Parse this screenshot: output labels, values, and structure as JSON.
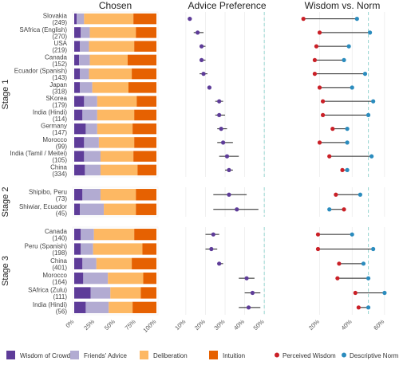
{
  "chart_data": [
    {
      "panel": "chosen",
      "type": "bar",
      "title": "Chosen",
      "stacked": true,
      "x_ticks": [
        "0%",
        "25%",
        "50%",
        "75%",
        "100%"
      ],
      "xlim": [
        0,
        100
      ],
      "series_names": [
        "Wisdom of Crowds",
        "Friends' Advice",
        "Deliberation",
        "Intuition"
      ],
      "series_colors": [
        "#5e3c99",
        "#b2abd2",
        "#fdb863",
        "#e66101"
      ],
      "stages": [
        {
          "name": "Stage 1",
          "rows": [
            {
              "label": "Slovakia",
              "n": "(249)",
              "values": [
                3,
                9,
                60,
                28
              ]
            },
            {
              "label": "SAfrica (English)",
              "n": "(270)",
              "values": [
                8,
                11,
                56,
                25
              ]
            },
            {
              "label": "USA",
              "n": "(219)",
              "values": [
                7,
                11,
                55,
                27
              ]
            },
            {
              "label": "Canada",
              "n": "(152)",
              "values": [
                6,
                13,
                46,
                35
              ]
            },
            {
              "label": "Ecuador (Spanish)",
              "n": "(143)",
              "values": [
                7,
                11,
                52,
                30
              ]
            },
            {
              "label": "Japan",
              "n": "(318)",
              "values": [
                7,
                15,
                44,
                34
              ]
            },
            {
              "label": "SKorea",
              "n": "(179)",
              "values": [
                12,
                16,
                48,
                24
              ]
            },
            {
              "label": "India (Hindi)",
              "n": "(114)",
              "values": [
                10,
                18,
                45,
                27
              ]
            },
            {
              "label": "Germany",
              "n": "(147)",
              "values": [
                14,
                14,
                43,
                29
              ]
            },
            {
              "label": "Morocco",
              "n": "(99)",
              "values": [
                12,
                18,
                43,
                27
              ]
            },
            {
              "label": "India (Tamil / Meitei)",
              "n": "(105)",
              "values": [
                12,
                20,
                40,
                28
              ]
            },
            {
              "label": "China",
              "n": "(334)",
              "values": [
                13,
                19,
                45,
                23
              ]
            }
          ]
        },
        {
          "name": "Stage 2",
          "rows": [
            {
              "label": "Shipibo, Peru",
              "n": "(73)",
              "values": [
                10,
                22,
                43,
                25
              ]
            },
            {
              "label": "Shiwiar, Ecuador",
              "n": "(45)",
              "values": [
                7,
                29,
                39,
                25
              ]
            }
          ]
        },
        {
          "name": "Stage 3",
          "rows": [
            {
              "label": "Canada",
              "n": "(140)",
              "values": [
                8,
                16,
                49,
                27
              ]
            },
            {
              "label": "Peru (Spanish)",
              "n": "(198)",
              "values": [
                8,
                15,
                60,
                17
              ]
            },
            {
              "label": "China",
              "n": "(401)",
              "values": [
                10,
                17,
                43,
                30
              ]
            },
            {
              "label": "Morocco",
              "n": "(164)",
              "values": [
                11,
                30,
                43,
                16
              ]
            },
            {
              "label": "SAfrica (Zulu)",
              "n": "(111)",
              "values": [
                20,
                24,
                37,
                19
              ]
            },
            {
              "label": "India (Hindi)",
              "n": "(56)",
              "values": [
                14,
                28,
                29,
                29
              ]
            }
          ]
        }
      ]
    },
    {
      "panel": "advice",
      "type": "scatter",
      "title": "Advice Preference",
      "x_ticks": [
        "10%",
        "20%",
        "30%",
        "40%",
        "50%"
      ],
      "xlim": [
        8,
        54
      ],
      "reference_line": 50,
      "point_color": "#5e3c99",
      "stages": [
        {
          "rows": [
            {
              "estimate": 12,
              "ci": [
                11,
                13
              ]
            },
            {
              "estimate": 16,
              "ci": [
                14,
                19
              ]
            },
            {
              "estimate": 18,
              "ci": [
                17,
                20
              ]
            },
            {
              "estimate": 18,
              "ci": [
                17,
                20
              ]
            },
            {
              "estimate": 19,
              "ci": [
                17,
                21
              ]
            },
            {
              "estimate": 22,
              "ci": [
                21,
                23
              ]
            },
            {
              "estimate": 27,
              "ci": [
                25,
                29
              ]
            },
            {
              "estimate": 27,
              "ci": [
                25,
                30
              ]
            },
            {
              "estimate": 28,
              "ci": [
                26,
                31
              ]
            },
            {
              "estimate": 29,
              "ci": [
                26,
                34
              ]
            },
            {
              "estimate": 31,
              "ci": [
                27,
                37
              ]
            },
            {
              "estimate": 32,
              "ci": [
                30,
                34
              ]
            }
          ]
        },
        {
          "rows": [
            {
              "estimate": 32,
              "ci": [
                24,
                41
              ]
            },
            {
              "estimate": 36,
              "ci": [
                24,
                47
              ]
            }
          ]
        },
        {
          "rows": [
            {
              "estimate": 24,
              "ci": [
                20,
                27
              ]
            },
            {
              "estimate": 23,
              "ci": [
                20,
                26
              ]
            },
            {
              "estimate": 27,
              "ci": [
                26,
                29
              ]
            },
            {
              "estimate": 41,
              "ci": [
                37,
                45
              ]
            },
            {
              "estimate": 44,
              "ci": [
                40,
                48
              ]
            },
            {
              "estimate": 42,
              "ci": [
                37,
                48
              ]
            }
          ]
        }
      ]
    },
    {
      "panel": "wisdom",
      "type": "scatter",
      "title": "Wisdom vs. Norm",
      "x_ticks": [
        "20%",
        "40%",
        "60%"
      ],
      "xlim": [
        5,
        63
      ],
      "reference_line": 50,
      "series_names": [
        "Perceived Wisdom",
        "Descriptive Norm"
      ],
      "series_colors": [
        "#ca2027",
        "#2b8cbe"
      ],
      "stages": [
        {
          "rows": [
            {
              "wisdom": 10,
              "norm": 43
            },
            {
              "wisdom": 20,
              "norm": 51
            },
            {
              "wisdom": 18,
              "norm": 38
            },
            {
              "wisdom": 17,
              "norm": 35
            },
            {
              "wisdom": 17,
              "norm": 48
            },
            {
              "wisdom": 20,
              "norm": 40
            },
            {
              "wisdom": 22,
              "norm": 53
            },
            {
              "wisdom": 22,
              "norm": 50
            },
            {
              "wisdom": 28,
              "norm": 37
            },
            {
              "wisdom": 20,
              "norm": 37
            },
            {
              "wisdom": 26,
              "norm": 52
            },
            {
              "wisdom": 34,
              "norm": 37
            }
          ]
        },
        {
          "rows": [
            {
              "wisdom": 30,
              "norm": 45
            },
            {
              "wisdom": 35,
              "norm": 26
            }
          ]
        },
        {
          "rows": [
            {
              "wisdom": 19,
              "norm": 40
            },
            {
              "wisdom": 19,
              "norm": 53
            },
            {
              "wisdom": 32,
              "norm": 47
            },
            {
              "wisdom": 31,
              "norm": 50
            },
            {
              "wisdom": 42,
              "norm": 60
            },
            {
              "wisdom": 44,
              "norm": 50
            }
          ]
        }
      ]
    }
  ]
}
